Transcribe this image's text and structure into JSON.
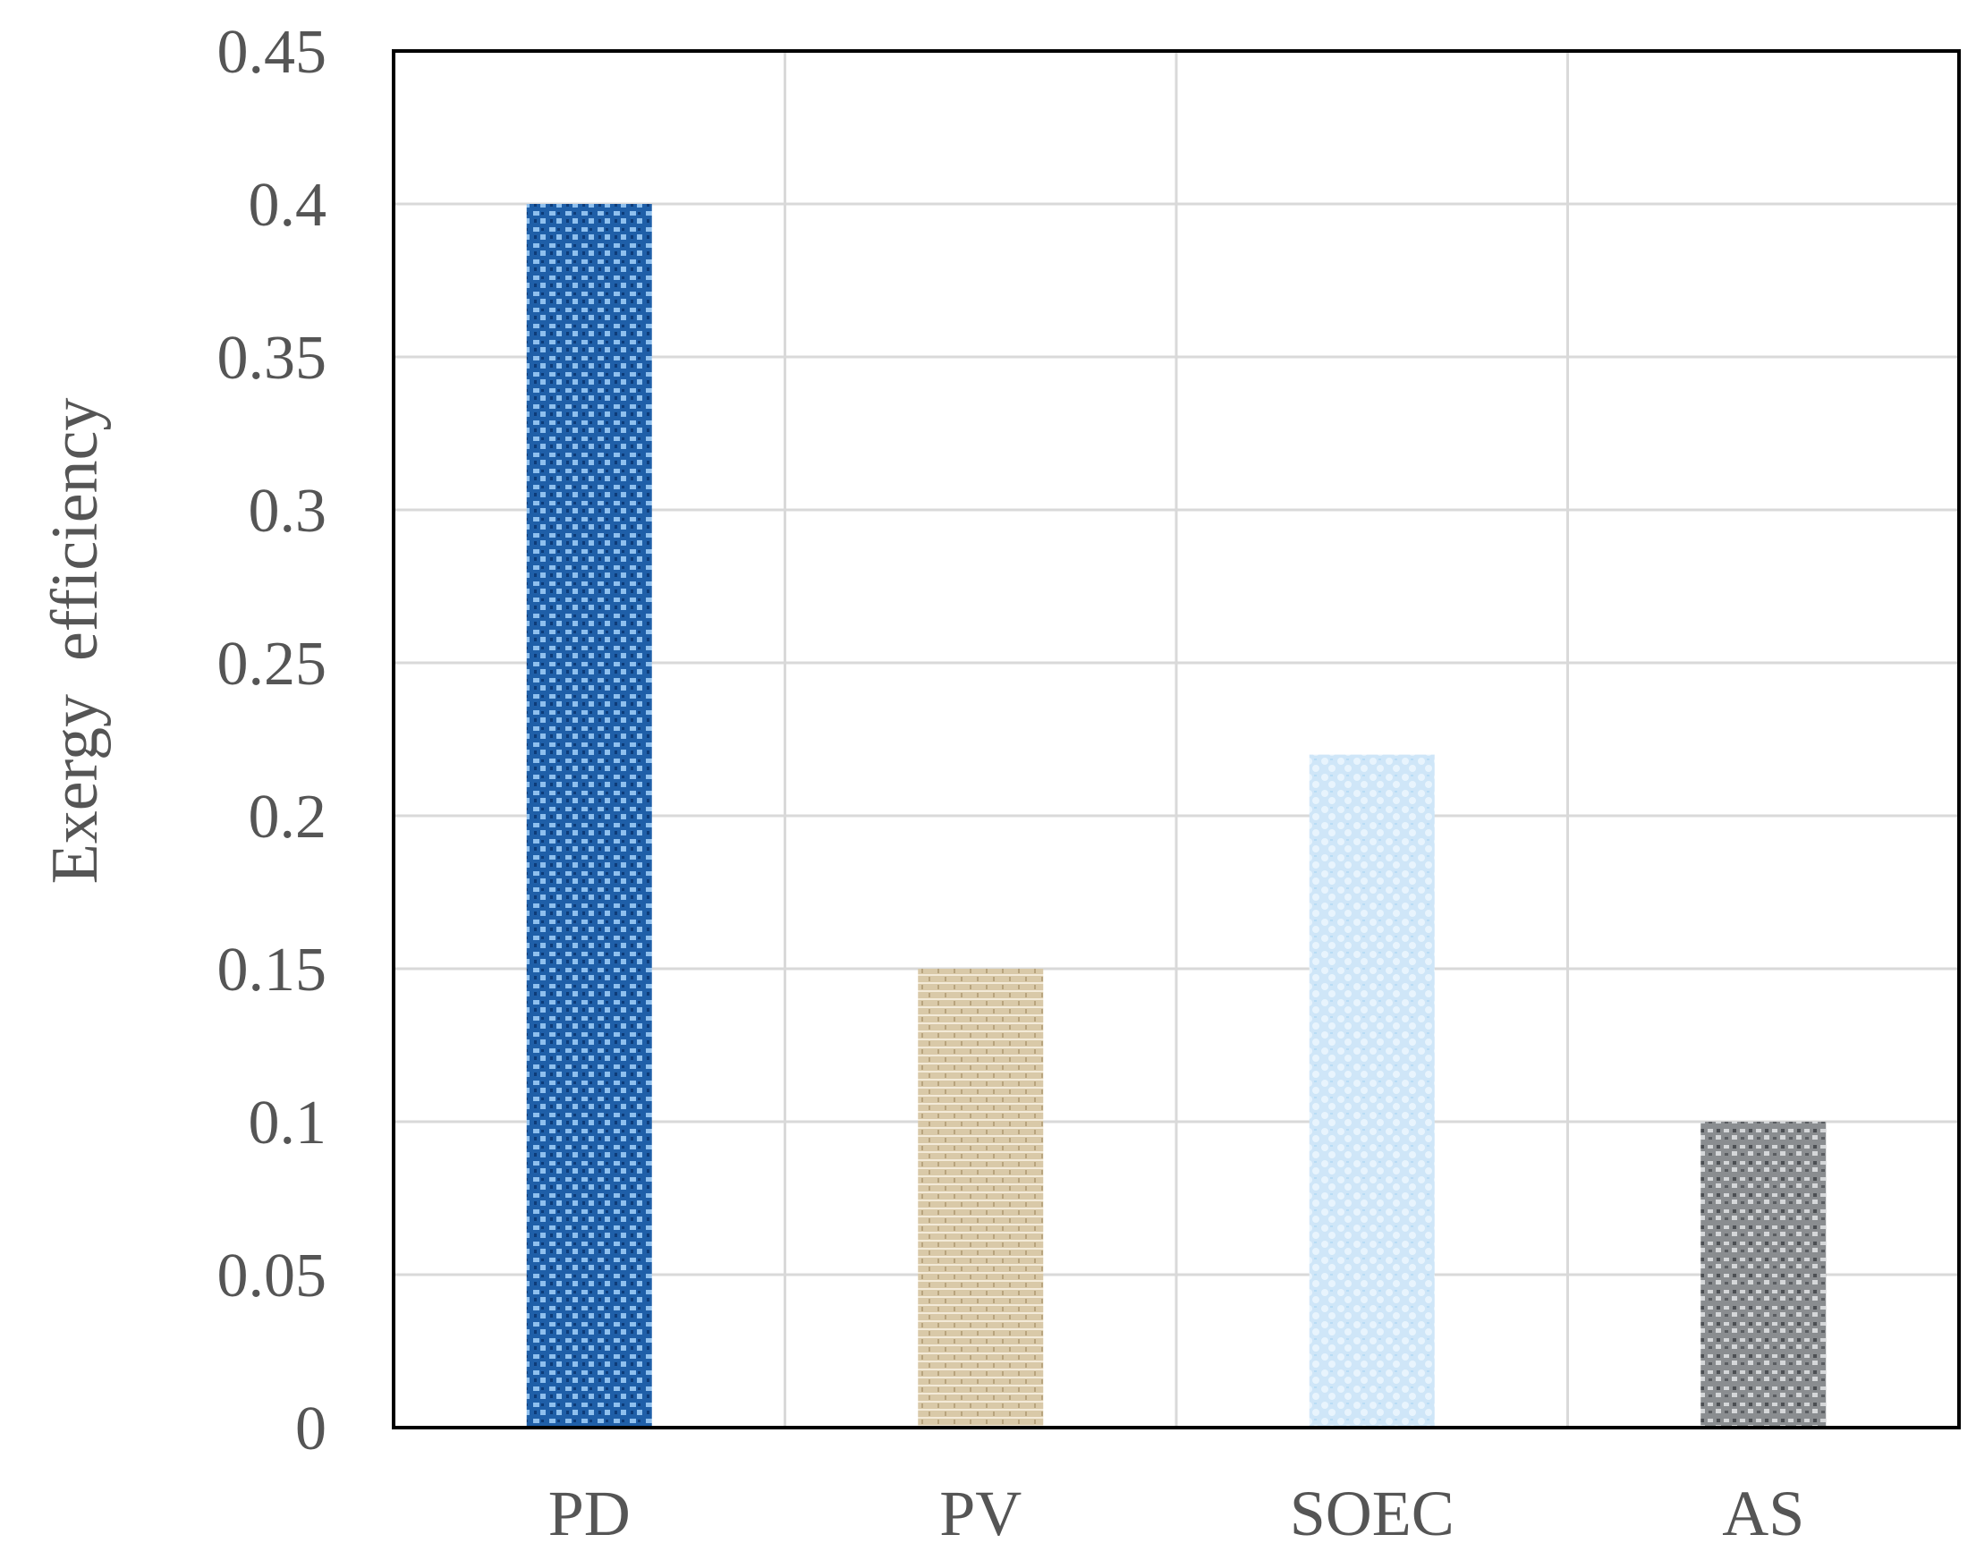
{
  "chart_data": {
    "type": "bar",
    "title": "",
    "xlabel": "",
    "ylabel": "Exergy  efficiency",
    "categories": [
      "PD",
      "PV",
      "SOEC",
      "AS"
    ],
    "values": [
      0.4,
      0.15,
      0.22,
      0.1
    ],
    "ylim": [
      0,
      0.45
    ],
    "yticks": [
      0,
      0.05,
      0.1,
      0.15,
      0.2,
      0.25,
      0.3,
      0.35,
      0.4,
      0.45
    ],
    "ytick_labels": [
      "0",
      "0.05",
      "0.1",
      "0.15",
      "0.2",
      "0.25",
      "0.3",
      "0.35",
      "0.4",
      "0.45"
    ],
    "grid": true,
    "legend": "none",
    "bar_colors": [
      "#1f5fa8",
      "#d9c9a8",
      "#cfe6f8",
      "#8a8d90"
    ],
    "bar_accent_colors": [
      "#8fc0ee",
      "#f3ead8",
      "#e8f4fd",
      "#d5d7d9"
    ]
  }
}
